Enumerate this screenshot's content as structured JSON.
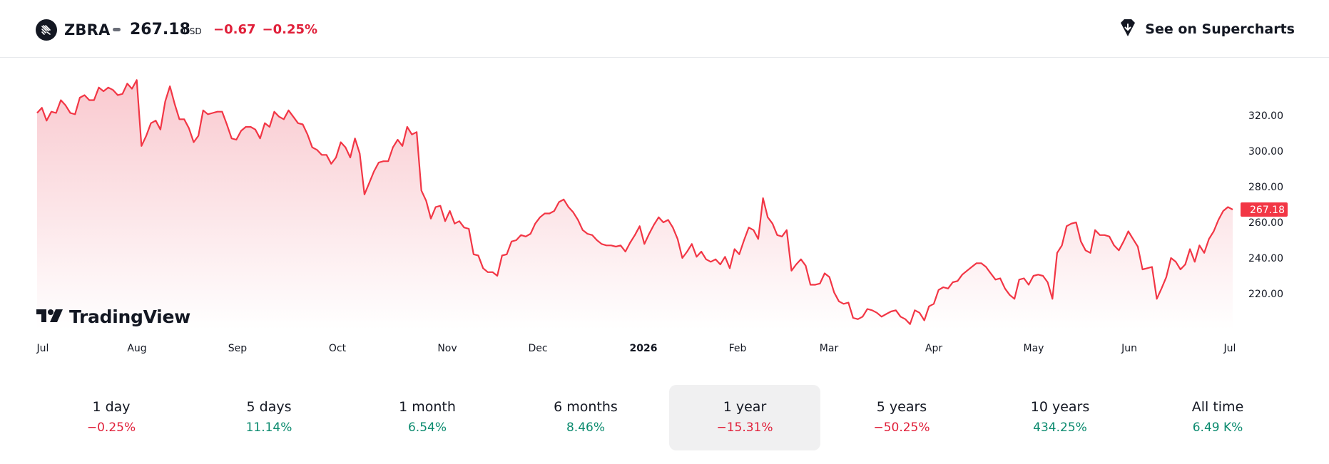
{
  "header": {
    "logo_icon": "zebra-logo-icon",
    "ticker": "ZBRA",
    "price": "267.18",
    "currency": "USD",
    "change_abs": "−0.67",
    "change_pct": "−0.25%",
    "change_color": "#e0203a",
    "superchart_icon": "tradingview-diamond-icon",
    "superchart_label": "See on Supercharts"
  },
  "chart_data": {
    "type": "area",
    "title": "",
    "xlabel": "",
    "ylabel": "",
    "line_color": "#f23645",
    "fill_top_color": "#f9c9cf",
    "y_ticks": [
      "320.00",
      "300.00",
      "280.00",
      "260.00",
      "240.00",
      "220.00"
    ],
    "y_tick_values": [
      320,
      300,
      280,
      260,
      240,
      220
    ],
    "ylim": [
      200,
      343
    ],
    "x_tick_labels": [
      "Jul",
      "Aug",
      "Sep",
      "Oct",
      "Nov",
      "Dec",
      "2026",
      "Feb",
      "Mar",
      "Apr",
      "May",
      "Jun",
      "Jul"
    ],
    "x_tick_bold": [
      false,
      false,
      false,
      false,
      false,
      false,
      true,
      false,
      false,
      false,
      false,
      false,
      false
    ],
    "last_price_label": "267.18",
    "last_price": 267.18,
    "values": [
      321.4,
      324.3,
      317.1,
      322.1,
      321.4,
      328.6,
      325.7,
      321.4,
      320.7,
      330.0,
      331.4,
      328.6,
      328.6,
      335.7,
      333.6,
      335.7,
      334.3,
      331.4,
      332.1,
      337.9,
      335.0,
      339.9,
      302.9,
      308.6,
      315.7,
      317.1,
      312.1,
      327.9,
      336.4,
      326.4,
      317.9,
      317.9,
      312.9,
      305.0,
      308.6,
      322.9,
      320.7,
      321.4,
      322.1,
      322.1,
      315.0,
      307.1,
      306.4,
      311.4,
      313.6,
      313.6,
      312.1,
      307.1,
      315.7,
      313.6,
      322.1,
      319.3,
      317.9,
      322.9,
      319.3,
      315.7,
      315.0,
      309.3,
      302.1,
      300.7,
      297.9,
      297.9,
      292.9,
      296.4,
      305.0,
      302.1,
      296.4,
      307.1,
      298.6,
      275.7,
      282.1,
      288.6,
      293.6,
      294.3,
      294.3,
      302.1,
      306.4,
      302.9,
      313.6,
      309.3,
      310.7,
      277.9,
      272.1,
      262.1,
      268.6,
      269.3,
      260.7,
      266.4,
      259.3,
      260.7,
      257.1,
      256.4,
      242.1,
      241.4,
      234.3,
      232.1,
      232.1,
      230.0,
      241.4,
      242.1,
      249.3,
      250.0,
      252.9,
      252.1,
      253.6,
      259.3,
      262.9,
      265.0,
      265.0,
      266.4,
      271.4,
      272.9,
      268.6,
      265.7,
      261.4,
      255.7,
      253.6,
      252.9,
      250.0,
      247.9,
      247.1,
      247.1,
      246.4,
      247.1,
      243.6,
      248.6,
      252.9,
      257.9,
      247.9,
      253.6,
      258.6,
      262.9,
      260.0,
      261.4,
      257.1,
      250.7,
      240.0,
      243.6,
      247.9,
      240.7,
      243.6,
      239.3,
      237.9,
      239.3,
      236.4,
      240.7,
      234.3,
      245.0,
      242.1,
      250.0,
      257.1,
      255.7,
      250.7,
      273.6,
      262.9,
      259.3,
      252.9,
      252.1,
      255.7,
      232.9,
      236.4,
      239.3,
      235.7,
      225.0,
      225.0,
      225.7,
      231.4,
      229.3,
      220.7,
      215.7,
      214.3,
      215.0,
      206.4,
      205.7,
      207.1,
      211.4,
      210.7,
      209.3,
      207.1,
      208.6,
      210.0,
      210.7,
      207.1,
      205.7,
      202.9,
      210.7,
      209.3,
      205.0,
      212.9,
      214.3,
      222.1,
      223.6,
      222.9,
      226.4,
      227.1,
      230.7,
      232.9,
      235.0,
      237.1,
      237.1,
      235.0,
      231.4,
      227.9,
      228.6,
      222.9,
      219.3,
      217.1,
      227.9,
      228.6,
      225.0,
      230.0,
      230.7,
      230.0,
      226.4,
      217.1,
      242.9,
      247.1,
      257.9,
      259.3,
      260.0,
      249.3,
      244.3,
      242.9,
      255.7,
      252.9,
      252.9,
      252.1,
      247.1,
      244.3,
      249.3,
      255.0,
      250.7,
      246.4,
      233.6,
      234.3,
      235.0,
      217.1,
      222.9,
      229.3,
      240.0,
      237.9,
      233.6,
      236.4,
      245.0,
      237.9,
      247.1,
      242.9,
      250.7,
      255.0,
      261.4,
      266.4,
      268.6,
      267.18
    ]
  },
  "branding": {
    "logo_icon": "tradingview-logo-icon",
    "text": "TradingView"
  },
  "periods": [
    {
      "label": "1 day",
      "value": "−0.25%",
      "color": "#e0203a",
      "active": false
    },
    {
      "label": "5 days",
      "value": "11.14%",
      "color": "#0a8a6e",
      "active": false
    },
    {
      "label": "1 month",
      "value": "6.54%",
      "color": "#0a8a6e",
      "active": false
    },
    {
      "label": "6 months",
      "value": "8.46%",
      "color": "#0a8a6e",
      "active": false
    },
    {
      "label": "1 year",
      "value": "−15.31%",
      "color": "#e0203a",
      "active": true
    },
    {
      "label": "5 years",
      "value": "−50.25%",
      "color": "#e0203a",
      "active": false
    },
    {
      "label": "10 years",
      "value": "434.25%",
      "color": "#0a8a6e",
      "active": false
    },
    {
      "label": "All time",
      "value": "6.49 K%",
      "color": "#0a8a6e",
      "active": false
    }
  ]
}
